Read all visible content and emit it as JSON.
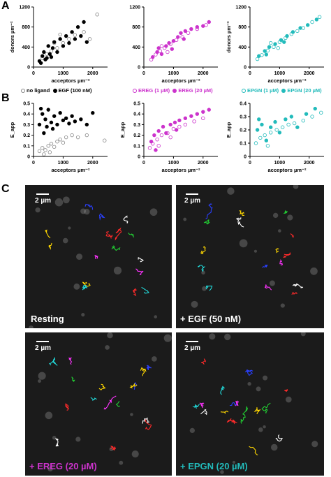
{
  "panels": {
    "A": "A",
    "B": "B",
    "C": "C"
  },
  "chart_data": [
    {
      "id": "A1",
      "type": "scatter",
      "xlabel": "acceptors µm⁻²",
      "ylabel": "donors µm⁻²",
      "xlim": [
        0,
        2500
      ],
      "ylim": [
        0,
        1200
      ],
      "xticks": [
        0,
        1000,
        2000
      ],
      "yticks": [
        0,
        400,
        800,
        1200
      ],
      "series": [
        {
          "name": "no ligand",
          "style": "open",
          "color": "#888888",
          "points": [
            [
              300,
              180
            ],
            [
              450,
              260
            ],
            [
              600,
              320
            ],
            [
              800,
              380
            ],
            [
              1000,
              480
            ],
            [
              1200,
              560
            ],
            [
              1400,
              640
            ],
            [
              1700,
              700
            ],
            [
              1900,
              560
            ],
            [
              2150,
              1050
            ],
            [
              900,
              650
            ],
            [
              700,
              480
            ]
          ]
        },
        {
          "name": "EGF (100 nM)",
          "style": "filled",
          "color": "#000000",
          "points": [
            [
              200,
              120
            ],
            [
              300,
              220
            ],
            [
              350,
              300
            ],
            [
              400,
              150
            ],
            [
              500,
              420
            ],
            [
              550,
              260
            ],
            [
              650,
              380
            ],
            [
              700,
              500
            ],
            [
              800,
              300
            ],
            [
              900,
              560
            ],
            [
              1000,
              420
            ],
            [
              1100,
              620
            ],
            [
              1200,
              480
            ],
            [
              1300,
              700
            ],
            [
              1400,
              560
            ],
            [
              1500,
              800
            ],
            [
              1600,
              620
            ],
            [
              1700,
              900
            ],
            [
              1800,
              500
            ],
            [
              250,
              80
            ],
            [
              450,
              180
            ],
            [
              600,
              200
            ]
          ]
        }
      ]
    },
    {
      "id": "A2",
      "type": "scatter",
      "xlabel": "acceptors µm⁻²",
      "ylabel": "",
      "xlim": [
        0,
        2500
      ],
      "ylim": [
        0,
        1200
      ],
      "xticks": [
        0,
        1000,
        2000
      ],
      "yticks": [
        0,
        400,
        800,
        1200
      ],
      "series": [
        {
          "name": "EREG (1 µM)",
          "style": "open",
          "color": "#cc33cc",
          "points": [
            [
              250,
              150
            ],
            [
              400,
              250
            ],
            [
              550,
              320
            ],
            [
              700,
              380
            ],
            [
              900,
              460
            ],
            [
              1100,
              540
            ],
            [
              1300,
              600
            ],
            [
              1500,
              680
            ],
            [
              1800,
              760
            ],
            [
              2100,
              840
            ],
            [
              600,
              420
            ],
            [
              800,
              300
            ]
          ]
        },
        {
          "name": "EREG (20 µM)",
          "style": "filled",
          "color": "#cc33cc",
          "points": [
            [
              300,
              200
            ],
            [
              450,
              300
            ],
            [
              600,
              260
            ],
            [
              750,
              420
            ],
            [
              850,
              480
            ],
            [
              1000,
              520
            ],
            [
              1150,
              600
            ],
            [
              1250,
              680
            ],
            [
              1400,
              720
            ],
            [
              1600,
              760
            ],
            [
              1800,
              800
            ],
            [
              2000,
              820
            ],
            [
              2200,
              900
            ],
            [
              500,
              380
            ],
            [
              950,
              360
            ],
            [
              1350,
              560
            ]
          ]
        }
      ]
    },
    {
      "id": "A3",
      "type": "scatter",
      "xlabel": "acceptors µm⁻²",
      "ylabel": "donors µm⁻²",
      "xlim": [
        0,
        2500
      ],
      "ylim": [
        0,
        1200
      ],
      "xticks": [
        0,
        1000,
        2000
      ],
      "yticks": [
        0,
        400,
        800,
        1200
      ],
      "series": [
        {
          "name": "EPGN (1 µM)",
          "style": "open",
          "color": "#22bbbb",
          "points": [
            [
              250,
              160
            ],
            [
              400,
              240
            ],
            [
              600,
              330
            ],
            [
              800,
              400
            ],
            [
              1000,
              500
            ],
            [
              1200,
              580
            ],
            [
              1400,
              660
            ],
            [
              1600,
              720
            ],
            [
              1800,
              780
            ],
            [
              2100,
              900
            ],
            [
              2350,
              1000
            ],
            [
              700,
              480
            ],
            [
              950,
              380
            ]
          ]
        },
        {
          "name": "EPGN (20 µM)",
          "style": "filled",
          "color": "#22bbbb",
          "points": [
            [
              300,
              220
            ],
            [
              500,
              320
            ],
            [
              650,
              400
            ],
            [
              850,
              460
            ],
            [
              1050,
              540
            ],
            [
              1250,
              620
            ],
            [
              1450,
              700
            ],
            [
              1700,
              780
            ],
            [
              1950,
              840
            ],
            [
              2250,
              950
            ],
            [
              550,
              250
            ],
            [
              1150,
              500
            ]
          ]
        }
      ]
    },
    {
      "id": "B1",
      "type": "scatter",
      "xlabel": "acceptors µm⁻²",
      "ylabel": "E_app",
      "xlim": [
        0,
        2500
      ],
      "ylim": [
        0,
        0.5
      ],
      "xticks": [
        0,
        1000,
        2000
      ],
      "yticks": [
        0.0,
        0.1,
        0.2,
        0.3,
        0.4,
        0.5
      ],
      "series": [
        {
          "name": "no ligand",
          "style": "open",
          "color": "#888888",
          "points": [
            [
              200,
              0.05
            ],
            [
              300,
              0.08
            ],
            [
              400,
              0.06
            ],
            [
              500,
              0.1
            ],
            [
              600,
              0.12
            ],
            [
              700,
              0.09
            ],
            [
              800,
              0.14
            ],
            [
              900,
              0.16
            ],
            [
              1000,
              0.13
            ],
            [
              1100,
              0.18
            ],
            [
              1300,
              0.2
            ],
            [
              1500,
              0.18
            ],
            [
              1800,
              0.2
            ],
            [
              2400,
              0.15
            ],
            [
              350,
              0.02
            ],
            [
              550,
              0.04
            ]
          ]
        },
        {
          "name": "EGF (100 nM)",
          "style": "filled",
          "color": "#000000",
          "points": [
            [
              200,
              0.3
            ],
            [
              300,
              0.4
            ],
            [
              350,
              0.22
            ],
            [
              400,
              0.35
            ],
            [
              450,
              0.28
            ],
            [
              500,
              0.44
            ],
            [
              600,
              0.32
            ],
            [
              700,
              0.38
            ],
            [
              800,
              0.3
            ],
            [
              900,
              0.41
            ],
            [
              1000,
              0.34
            ],
            [
              1100,
              0.36
            ],
            [
              1200,
              0.31
            ],
            [
              1300,
              0.38
            ],
            [
              1400,
              0.33
            ],
            [
              1600,
              0.35
            ],
            [
              1800,
              0.3
            ],
            [
              2000,
              0.41
            ],
            [
              250,
              0.45
            ],
            [
              650,
              0.26
            ]
          ]
        }
      ]
    },
    {
      "id": "B2",
      "type": "scatter",
      "xlabel": "acceptors µm⁻²",
      "ylabel": "E_app",
      "xlim": [
        0,
        2500
      ],
      "ylim": [
        0,
        0.5
      ],
      "xticks": [
        0,
        1000,
        2000
      ],
      "yticks": [
        0.0,
        0.1,
        0.2,
        0.3,
        0.4,
        0.5
      ],
      "series": [
        {
          "name": "EREG (1 µM)",
          "style": "open",
          "color": "#cc33cc",
          "points": [
            [
              200,
              0.08
            ],
            [
              300,
              0.12
            ],
            [
              450,
              0.16
            ],
            [
              600,
              0.2
            ],
            [
              800,
              0.22
            ],
            [
              1000,
              0.26
            ],
            [
              1200,
              0.28
            ],
            [
              1400,
              0.3
            ],
            [
              1700,
              0.33
            ],
            [
              2000,
              0.36
            ],
            [
              500,
              0.1
            ],
            [
              900,
              0.18
            ]
          ]
        },
        {
          "name": "EREG (20 µM)",
          "style": "filled",
          "color": "#cc33cc",
          "points": [
            [
              250,
              0.14
            ],
            [
              350,
              0.2
            ],
            [
              500,
              0.24
            ],
            [
              650,
              0.28
            ],
            [
              750,
              0.22
            ],
            [
              900,
              0.3
            ],
            [
              1050,
              0.32
            ],
            [
              1200,
              0.34
            ],
            [
              1400,
              0.36
            ],
            [
              1600,
              0.38
            ],
            [
              1800,
              0.4
            ],
            [
              2000,
              0.42
            ],
            [
              2200,
              0.44
            ],
            [
              400,
              0.06
            ],
            [
              1100,
              0.25
            ]
          ]
        }
      ]
    },
    {
      "id": "B3",
      "type": "scatter",
      "xlabel": "acceptors µm⁻²",
      "ylabel": "E_app",
      "xlim": [
        0,
        2500
      ],
      "ylim": [
        0,
        0.4
      ],
      "xticks": [
        0,
        1000,
        2000
      ],
      "yticks": [
        0.0,
        0.1,
        0.2,
        0.3,
        0.4
      ],
      "series": [
        {
          "name": "EPGN (1 µM)",
          "style": "open",
          "color": "#22bbbb",
          "points": [
            [
              200,
              0.1
            ],
            [
              350,
              0.14
            ],
            [
              500,
              0.16
            ],
            [
              700,
              0.18
            ],
            [
              900,
              0.2
            ],
            [
              1100,
              0.22
            ],
            [
              1300,
              0.24
            ],
            [
              1500,
              0.25
            ],
            [
              1800,
              0.27
            ],
            [
              2100,
              0.3
            ],
            [
              2400,
              0.33
            ],
            [
              600,
              0.08
            ]
          ]
        },
        {
          "name": "EPGN (20 µM)",
          "style": "filled",
          "color": "#22bbbb",
          "points": [
            [
              250,
              0.2
            ],
            [
              400,
              0.24
            ],
            [
              550,
              0.12
            ],
            [
              700,
              0.22
            ],
            [
              850,
              0.26
            ],
            [
              1000,
              0.18
            ],
            [
              1200,
              0.28
            ],
            [
              1400,
              0.3
            ],
            [
              1600,
              0.22
            ],
            [
              1900,
              0.32
            ],
            [
              2200,
              0.36
            ],
            [
              300,
              0.28
            ]
          ]
        }
      ]
    }
  ],
  "legends": {
    "row1": [
      {
        "label": "no ligand",
        "style": "open",
        "color": "#888888"
      },
      {
        "label": "EGF (100 nM)",
        "style": "filled",
        "color": "#000000"
      }
    ],
    "row2": [
      {
        "label": "EREG (1 µM)",
        "style": "open",
        "color": "#cc33cc"
      },
      {
        "label": "EREG (20 µM)",
        "style": "filled",
        "color": "#cc33cc"
      }
    ],
    "row3": [
      {
        "label": "EPGN (1 µM)",
        "style": "open",
        "color": "#22bbbb"
      },
      {
        "label": "EPGN (20 µM)",
        "style": "filled",
        "color": "#22bbbb"
      }
    ]
  },
  "micrographs": [
    {
      "scale": "2 µm",
      "label": "Resting",
      "label_color": "#ffffff"
    },
    {
      "scale": "2 µm",
      "label": "+ EGF (50 nM)",
      "label_color": "#ffffff"
    },
    {
      "scale": "2 µm",
      "label": "+ EREG (20 µM)",
      "label_color": "#cc33cc"
    },
    {
      "scale": "2 µm",
      "label": "+ EPGN (20 µM)",
      "label_color": "#22bbbb"
    }
  ]
}
